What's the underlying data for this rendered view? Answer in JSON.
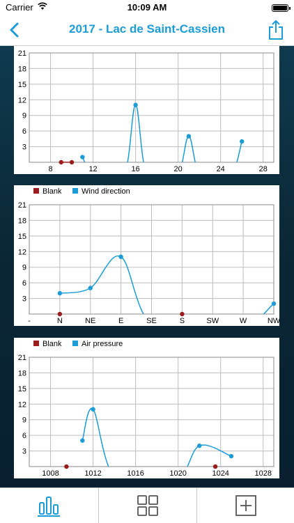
{
  "status_bar": {
    "carrier": "Carrier",
    "time": "10:09 AM"
  },
  "nav": {
    "title": "2017 - Lac de Saint-Cassien"
  },
  "colors": {
    "accent": "#1c9bd6",
    "blank": "#9b1c1c"
  },
  "charts": [
    {
      "legend": [],
      "y_ticks": [
        "21",
        "18",
        "15",
        "12",
        "9",
        "6",
        "3"
      ],
      "x_ticks": [
        "8",
        "12",
        "16",
        "20",
        "24",
        "28"
      ],
      "chart_data": {
        "type": "line",
        "ylim": [
          0,
          21
        ],
        "xlim": [
          6,
          29
        ],
        "series": [
          {
            "name": "",
            "color": "#9b1c1c",
            "points": [
              [
                9,
                0
              ],
              [
                10,
                0
              ]
            ]
          },
          {
            "name": "",
            "color": "#1c9bd6",
            "points": [
              [
                11,
                1
              ],
              [
                16,
                11
              ],
              [
                21,
                5
              ],
              [
                26,
                4
              ]
            ]
          }
        ]
      }
    },
    {
      "legend": [
        {
          "label": "Blank",
          "color": "#9b1c1c"
        },
        {
          "label": "Wind direction",
          "color": "#1c9bd6"
        }
      ],
      "y_ticks": [
        "21",
        "18",
        "15",
        "12",
        "9",
        "6",
        "3"
      ],
      "x_ticks": [
        "-",
        "N",
        "NE",
        "E",
        "SE",
        "S",
        "SW",
        "W",
        "NW"
      ],
      "chart_data": {
        "type": "line",
        "ylim": [
          0,
          21
        ],
        "categories": [
          "-",
          "N",
          "NE",
          "E",
          "SE",
          "S",
          "SW",
          "W",
          "NW"
        ],
        "series": [
          {
            "name": "Blank",
            "color": "#9b1c1c",
            "points": [
              [
                "N",
                0
              ],
              [
                "S",
                0
              ]
            ]
          },
          {
            "name": "Wind direction",
            "color": "#1c9bd6",
            "points": [
              [
                "N",
                4
              ],
              [
                "NE",
                5
              ],
              [
                "E",
                11
              ],
              [
                "NW",
                2
              ]
            ]
          }
        ]
      }
    },
    {
      "legend": [
        {
          "label": "Blank",
          "color": "#9b1c1c"
        },
        {
          "label": "Air pressure",
          "color": "#1c9bd6"
        }
      ],
      "y_ticks": [
        "21",
        "18",
        "15",
        "12",
        "9",
        "6",
        "3"
      ],
      "x_ticks": [
        "1008",
        "1012",
        "1016",
        "1020",
        "1024",
        "1028"
      ],
      "chart_data": {
        "type": "line",
        "ylim": [
          0,
          21
        ],
        "xlim": [
          1006,
          1029
        ],
        "series": [
          {
            "name": "Blank",
            "color": "#9b1c1c",
            "points": [
              [
                1009.5,
                0
              ],
              [
                1023.5,
                0
              ]
            ]
          },
          {
            "name": "Air pressure",
            "color": "#1c9bd6",
            "points": [
              [
                1011,
                5
              ],
              [
                1012,
                11
              ],
              [
                1022,
                4
              ],
              [
                1025,
                2
              ]
            ]
          }
        ]
      }
    }
  ],
  "tabs": [
    {
      "icon": "bar-chart-icon",
      "active": true
    },
    {
      "icon": "grid-icon",
      "active": false
    },
    {
      "icon": "add-icon",
      "active": false
    }
  ]
}
